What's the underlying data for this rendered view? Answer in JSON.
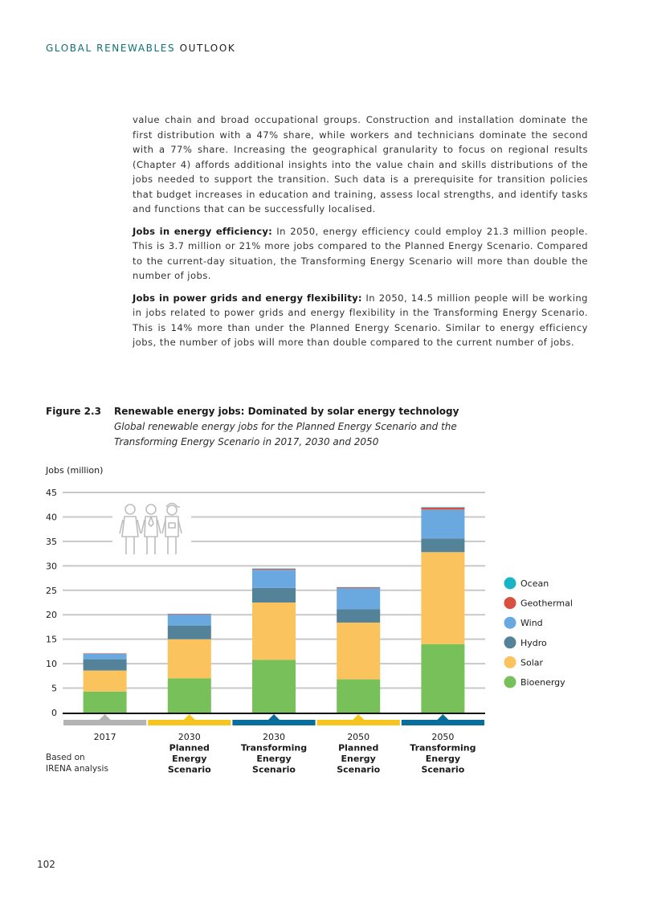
{
  "header": {
    "title_teal": "GLOBAL RENEWABLES",
    "title_dark": "OUTLOOK"
  },
  "body": {
    "p1": "value chain and broad occupational groups. Construction and installation dominate the first distribution with a 47% share, while workers and technicians dominate the second with a 77% share. Increasing the geographical granularity to focus on regional results (Chapter 4) affords additional insights into the value chain and skills distributions of the jobs needed to support the transition. Such data is a prerequisite for transition policies that budget increases in education and training, assess local strengths, and identify tasks and functions that can be successfully localised.",
    "p2_bold": "Jobs in energy efficiency:",
    "p2_text": " In 2050, energy efficiency could employ 21.3 million people. This is 3.7 million or 21% more jobs compared to the Planned Energy Scenario. Compared to the current-day situation, the Transforming Energy Scenario will more than double the number of jobs.",
    "p3_bold": "Jobs in power grids and energy flexibility:",
    "p3_text": " In 2050, 14.5 million people will be working in jobs related to power grids and energy flexibility in the Transforming Energy Scenario. This is 14% more than under the Planned Energy Scenario. Similar to energy efficiency jobs, the number of jobs will more than double compared to the current number of jobs."
  },
  "figure": {
    "label": "Figure 2.3",
    "title": "Renewable energy jobs: Dominated by solar energy technology",
    "subtitle": "Global renewable energy jobs for the Planned Energy Scenario and the Transforming Energy Scenario in 2017, 2030 and 2050"
  },
  "source": {
    "line1": "Based on",
    "line2": "IRENA analysis"
  },
  "page_number": "102",
  "chart_data": {
    "type": "bar",
    "stacked": true,
    "ylabel": "Jobs (million)",
    "ylim": [
      0,
      45
    ],
    "yticks": [
      0,
      5,
      10,
      15,
      20,
      25,
      30,
      35,
      40,
      45
    ],
    "grid": true,
    "legend_position": "right",
    "categories": [
      {
        "lines": [
          "2017"
        ],
        "band_color": "#b3b3b3"
      },
      {
        "lines": [
          "2030",
          "Planned",
          "Energy",
          "Scenario"
        ],
        "band_color": "#f7c51f"
      },
      {
        "lines": [
          "2030",
          "Transforming",
          "Energy",
          "Scenario"
        ],
        "band_color": "#0a6e9b"
      },
      {
        "lines": [
          "2050",
          "Planned",
          "Energy",
          "Scenario"
        ],
        "band_color": "#f7c51f"
      },
      {
        "lines": [
          "2050",
          "Transforming",
          "Energy",
          "Scenario"
        ],
        "band_color": "#0a6e9b"
      }
    ],
    "series": [
      {
        "name": "Bioenergy",
        "color": "#78c05a",
        "values": [
          4.3,
          7.0,
          10.8,
          6.8,
          14.0
        ]
      },
      {
        "name": "Solar",
        "color": "#fbc35d",
        "values": [
          4.3,
          8.0,
          11.7,
          11.6,
          18.8
        ]
      },
      {
        "name": "Hydro",
        "color": "#548299",
        "values": [
          2.3,
          2.8,
          3.0,
          2.7,
          2.8
        ]
      },
      {
        "name": "Wind",
        "color": "#6aa9df",
        "values": [
          1.1,
          2.3,
          3.7,
          4.3,
          5.9
        ]
      },
      {
        "name": "Geothermal",
        "color": "#d9513e",
        "values": [
          0.1,
          0.1,
          0.2,
          0.2,
          0.4
        ]
      },
      {
        "name": "Ocean",
        "color": "#19b5c7",
        "values": [
          0.0,
          0.0,
          0.05,
          0.05,
          0.1
        ]
      }
    ]
  }
}
